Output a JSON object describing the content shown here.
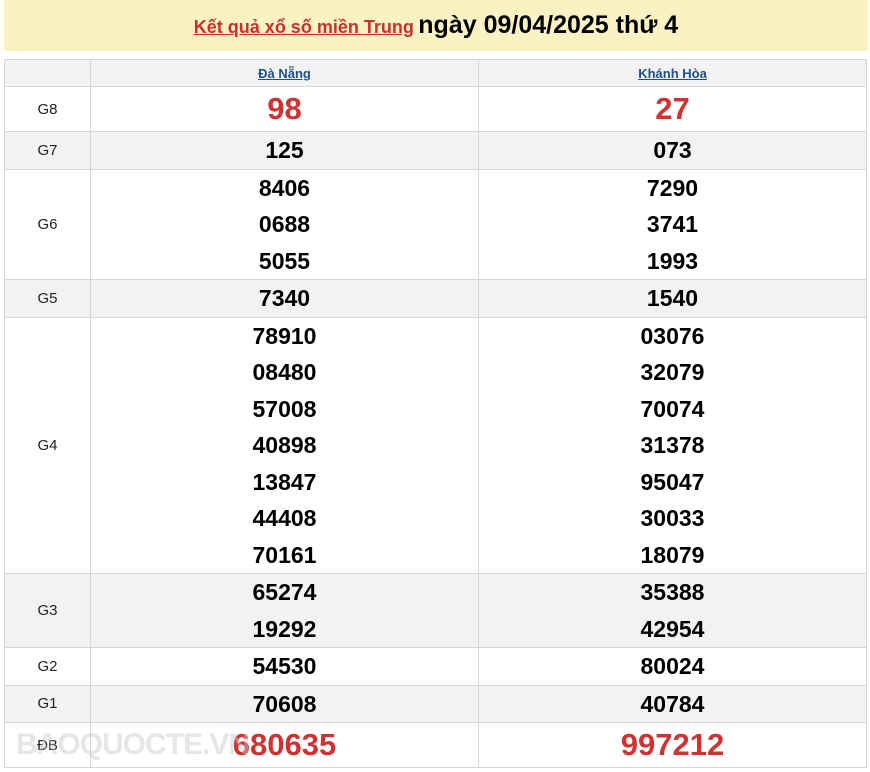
{
  "header": {
    "link": "Kết quả xổ số miền Trung",
    "date_text": "ngày 09/04/2025 thứ 4"
  },
  "columns": [
    "Đà Nẵng",
    "Khánh Hòa"
  ],
  "rows": [
    {
      "label": "G8",
      "a": [
        "98"
      ],
      "b": [
        "27"
      ],
      "big": true
    },
    {
      "label": "G7",
      "a": [
        "125"
      ],
      "b": [
        "073"
      ],
      "alt": true
    },
    {
      "label": "G6",
      "a": [
        "8406",
        "0688",
        "5055"
      ],
      "b": [
        "7290",
        "3741",
        "1993"
      ]
    },
    {
      "label": "G5",
      "a": [
        "7340"
      ],
      "b": [
        "1540"
      ],
      "alt": true
    },
    {
      "label": "G4",
      "a": [
        "78910",
        "08480",
        "57008",
        "40898",
        "13847",
        "44408",
        "70161"
      ],
      "b": [
        "03076",
        "32079",
        "70074",
        "31378",
        "95047",
        "30033",
        "18079"
      ]
    },
    {
      "label": "G3",
      "a": [
        "65274",
        "19292"
      ],
      "b": [
        "35388",
        "42954"
      ],
      "alt": true
    },
    {
      "label": "G2",
      "a": [
        "54530"
      ],
      "b": [
        "80024"
      ]
    },
    {
      "label": "G1",
      "a": [
        "70608"
      ],
      "b": [
        "40784"
      ],
      "alt": true
    },
    {
      "label": "ĐB",
      "a": [
        "680635"
      ],
      "b": [
        "997212"
      ],
      "big": true
    }
  ],
  "watermark": "BAOQUOCTE.VN",
  "colors": {
    "accent_red": "#d03232",
    "title_bg": "#fbf2c4",
    "link_blue": "#1f4e8c"
  }
}
